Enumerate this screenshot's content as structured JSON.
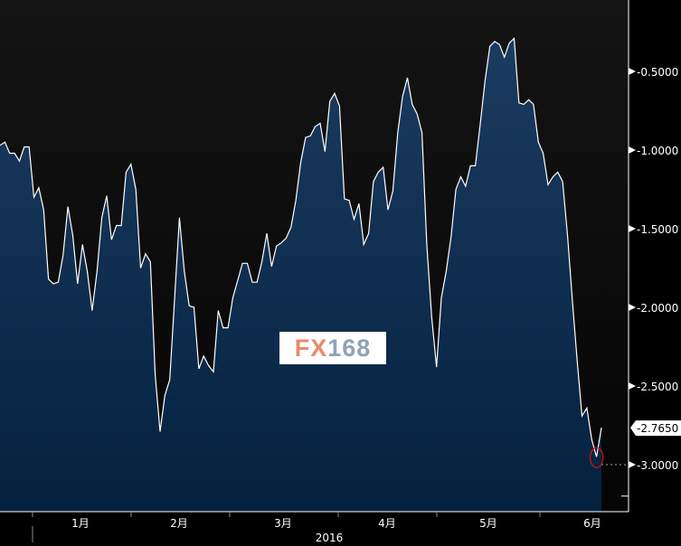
{
  "chart_data": {
    "type": "area",
    "title": "",
    "xlabel": "2016",
    "ylabel": "",
    "ylim": [
      -3.3,
      -0.05
    ],
    "yticks": [
      "-0.5000",
      "-1.0000",
      "-1.5000",
      "-2.0000",
      "-2.5000",
      "-3.0000"
    ],
    "ytick_values": [
      -0.5,
      -1.0,
      -1.5,
      -2.0,
      -2.5,
      -3.0
    ],
    "xticks": [
      "1月",
      "2月",
      "3月",
      "4月",
      "5月",
      "6月"
    ],
    "year_label": "2016",
    "last_value_label": "-2.7650",
    "highlight_level": -3.0,
    "values": [
      -0.97,
      -0.95,
      -1.02,
      -1.02,
      -1.07,
      -0.98,
      -0.98,
      -1.3,
      -1.24,
      -1.38,
      -1.82,
      -1.85,
      -1.84,
      -1.67,
      -1.36,
      -1.54,
      -1.85,
      -1.6,
      -1.77,
      -2.02,
      -1.77,
      -1.43,
      -1.29,
      -1.57,
      -1.48,
      -1.48,
      -1.14,
      -1.09,
      -1.25,
      -1.75,
      -1.66,
      -1.71,
      -2.43,
      -2.79,
      -2.56,
      -2.46,
      -1.94,
      -1.43,
      -1.77,
      -1.99,
      -2.0,
      -2.39,
      -2.31,
      -2.37,
      -2.41,
      -2.02,
      -2.13,
      -2.13,
      -1.94,
      -1.83,
      -1.72,
      -1.72,
      -1.84,
      -1.84,
      -1.71,
      -1.53,
      -1.74,
      -1.61,
      -1.59,
      -1.56,
      -1.49,
      -1.32,
      -1.08,
      -0.92,
      -0.91,
      -0.85,
      -0.83,
      -1.01,
      -0.69,
      -0.64,
      -0.72,
      -1.31,
      -1.32,
      -1.44,
      -1.34,
      -1.6,
      -1.53,
      -1.2,
      -1.14,
      -1.11,
      -1.38,
      -1.26,
      -0.89,
      -0.66,
      -0.54,
      -0.71,
      -0.77,
      -0.89,
      -1.6,
      -2.06,
      -2.38,
      -1.94,
      -1.77,
      -1.55,
      -1.25,
      -1.17,
      -1.23,
      -1.1,
      -1.1,
      -0.84,
      -0.56,
      -0.34,
      -0.31,
      -0.33,
      -0.41,
      -0.32,
      -0.29,
      -0.7,
      -0.71,
      -0.68,
      -0.71,
      -0.95,
      -1.02,
      -1.22,
      -1.17,
      -1.14,
      -1.2,
      -1.54,
      -1.95,
      -2.34,
      -2.69,
      -2.64,
      -2.84,
      -2.95,
      -2.765
    ]
  },
  "watermark": {
    "part1": "FX",
    "part2": "168"
  },
  "colors": {
    "line": "#ffffff",
    "fill_top": "#1b3b60",
    "fill_bottom": "#04213f",
    "marker": "#d0101a"
  }
}
